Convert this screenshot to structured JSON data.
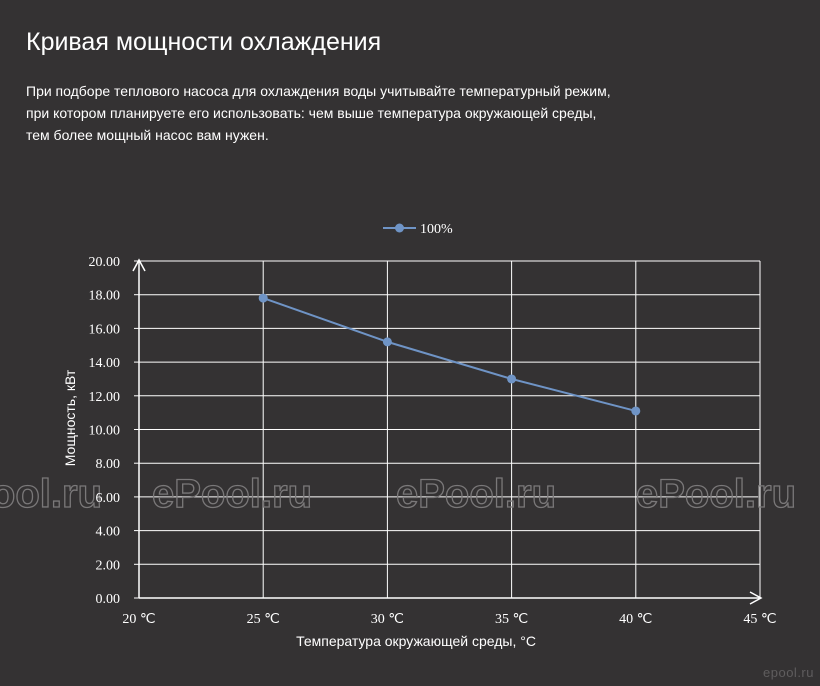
{
  "header": {
    "title": "Кривая мощности охлаждения",
    "description_lines": [
      "При подборе теплового насоса для охлаждения воды учитывайте температурный режим,",
      "при котором планируете его использовать: чем выше температура окружающей среды,",
      "тем более мощный насос вам нужен."
    ]
  },
  "watermark": {
    "text": "ePool.ru"
  },
  "brand": {
    "text": "epool.ru"
  },
  "colors": {
    "background": "#343233",
    "series": "#6f94c6",
    "grid": "#ffffff",
    "text": "#ffffff",
    "watermark": "#7a7879"
  },
  "chart_data": {
    "type": "line",
    "xlabel": "Температура окружающей среды, °C",
    "ylabel": "Мощность, кВт",
    "x_ticks": [
      "20 ℃",
      "25 ℃",
      "30 ℃",
      "35 ℃",
      "40 ℃",
      "45 ℃"
    ],
    "x_tick_values": [
      20,
      25,
      30,
      35,
      40,
      45
    ],
    "y_ticks": [
      "0.00",
      "2.00",
      "4.00",
      "6.00",
      "8.00",
      "10.00",
      "12.00",
      "14.00",
      "16.00",
      "18.00",
      "20.00"
    ],
    "y_tick_values": [
      0,
      2,
      4,
      6,
      8,
      10,
      12,
      14,
      16,
      18,
      20
    ],
    "xlim": [
      20,
      45
    ],
    "ylim": [
      0,
      20
    ],
    "grid": true,
    "legend_position": "top-center",
    "series": [
      {
        "name": "100%",
        "x": [
          25,
          30,
          35,
          40
        ],
        "y": [
          17.8,
          15.2,
          13.0,
          11.1
        ]
      }
    ]
  }
}
